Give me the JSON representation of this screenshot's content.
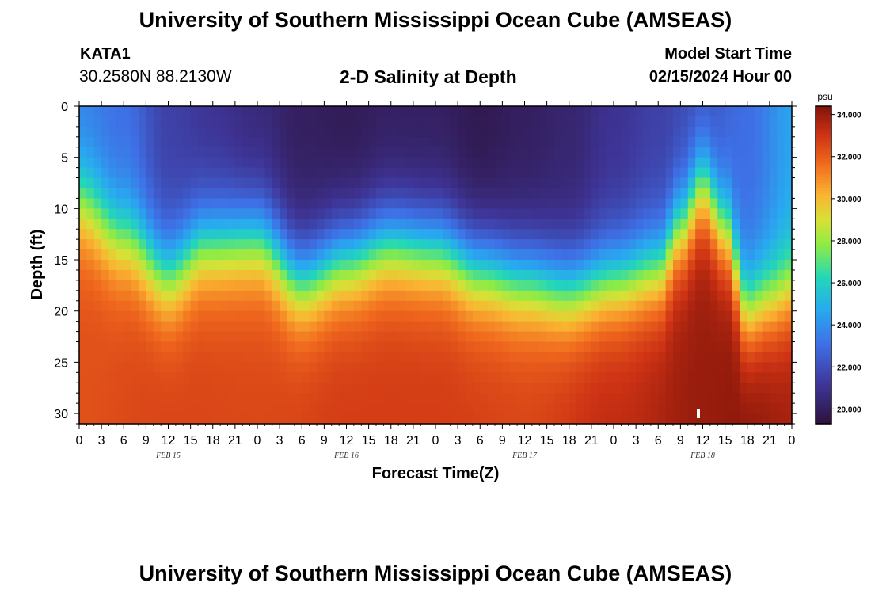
{
  "header": {
    "title": "University of Southern Mississippi Ocean Cube (AMSEAS)",
    "station_id": "KATA1",
    "station_coords": "30.2580N  88.2130W",
    "plot_title": "2-D Salinity at Depth",
    "model_start_label": "Model Start Time",
    "model_start_value": "02/15/2024 Hour 00"
  },
  "footer": {
    "title": "University of Southern Mississippi Ocean Cube (AMSEAS)"
  },
  "chart_data": {
    "type": "heatmap",
    "title": "2-D Salinity at Depth",
    "xlabel": "Forecast Time(Z)",
    "ylabel": "Depth (ft)",
    "x_hours_range": [
      0,
      96
    ],
    "x_tick_labels": [
      "0",
      "3",
      "6",
      "9",
      "12",
      "15",
      "18",
      "21",
      "0",
      "3",
      "6",
      "9",
      "12",
      "15",
      "18",
      "21",
      "0",
      "3",
      "6",
      "9",
      "12",
      "15",
      "18",
      "21",
      "0",
      "3",
      "6",
      "9",
      "12",
      "15",
      "18",
      "21",
      "0"
    ],
    "date_labels": [
      {
        "hour": 12,
        "label": "FEB 15"
      },
      {
        "hour": 36,
        "label": "FEB 16"
      },
      {
        "hour": 60,
        "label": "FEB 17"
      },
      {
        "hour": 84,
        "label": "FEB 18"
      }
    ],
    "ylim": [
      0,
      31
    ],
    "y_ticks": [
      0,
      5,
      10,
      15,
      20,
      25,
      30
    ],
    "colorbar": {
      "unit": "psu",
      "range": [
        19.3,
        34.4
      ],
      "ticks": [
        "20.000",
        "22.000",
        "24.000",
        "26.000",
        "28.000",
        "30.000",
        "32.000",
        "34.000"
      ]
    },
    "salinity_model": {
      "description": "Salinity (psu) vs forecast hour and depth (ft); halocline depth and surface salinity read from the figure",
      "halocline_depth_ft": [
        [
          0,
          9.5
        ],
        [
          6,
          13
        ],
        [
          12,
          16.5
        ],
        [
          17,
          13.5
        ],
        [
          24,
          13
        ],
        [
          30,
          17
        ],
        [
          36,
          15
        ],
        [
          42,
          13.5
        ],
        [
          48,
          14
        ],
        [
          54,
          16
        ],
        [
          60,
          17
        ],
        [
          66,
          18
        ],
        [
          72,
          17
        ],
        [
          78,
          16
        ],
        [
          81,
          12
        ],
        [
          84,
          8
        ],
        [
          87,
          12
        ],
        [
          90,
          20
        ],
        [
          93,
          19
        ],
        [
          96,
          18
        ]
      ],
      "surface_salinity_psu": [
        [
          0,
          23.5
        ],
        [
          6,
          23
        ],
        [
          12,
          21.5
        ],
        [
          18,
          21
        ],
        [
          24,
          20.5
        ],
        [
          30,
          20
        ],
        [
          36,
          19.8
        ],
        [
          42,
          20
        ],
        [
          48,
          20
        ],
        [
          54,
          19.7
        ],
        [
          60,
          20
        ],
        [
          66,
          20.3
        ],
        [
          72,
          21
        ],
        [
          78,
          21.5
        ],
        [
          84,
          22
        ],
        [
          90,
          23
        ],
        [
          96,
          24.5
        ]
      ],
      "deep_salinity_psu": [
        [
          0,
          32.3
        ],
        [
          12,
          32.6
        ],
        [
          24,
          32.5
        ],
        [
          36,
          32.8
        ],
        [
          48,
          32.8
        ],
        [
          60,
          32.6
        ],
        [
          72,
          33.3
        ],
        [
          84,
          34.0
        ],
        [
          90,
          34.2
        ],
        [
          96,
          33.8
        ]
      ],
      "halocline_thickness_ft": 7
    }
  }
}
